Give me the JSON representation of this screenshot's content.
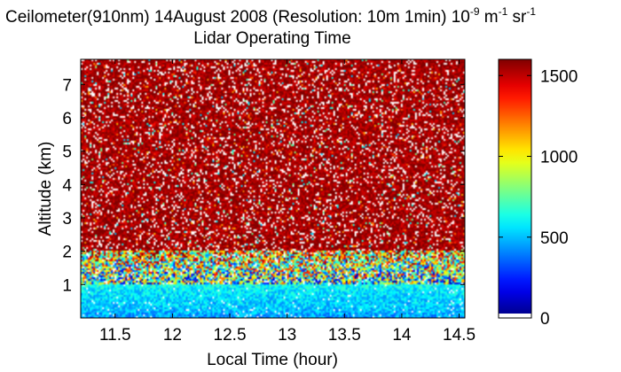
{
  "chart_data": {
    "type": "heatmap",
    "title": "Ceilometer(910nm) 14August 2008 (Resolution: 10m 1min) 10",
    "title_units": {
      "exp1": "-9",
      "unit1": " m",
      "exp2": "-1",
      "unit2": " sr",
      "exp3": "-1"
    },
    "subtitle": "Lidar Operating Time",
    "xlabel": "Local Time (hour)",
    "ylabel": "Altitude (km)",
    "xlim": [
      11.2,
      14.55
    ],
    "ylim": [
      0,
      7.75
    ],
    "x_ticks": [
      11.5,
      12,
      12.5,
      13,
      13.5,
      14,
      14.5
    ],
    "x_tick_labels": [
      "11.5",
      "12",
      "12.5",
      "13",
      "13.5",
      "14",
      "14.5"
    ],
    "y_ticks": [
      1,
      2,
      3,
      4,
      5,
      6,
      7
    ],
    "y_tick_labels": [
      "1",
      "2",
      "3",
      "4",
      "5",
      "6",
      "7"
    ],
    "colorbar": {
      "colormap": "jet",
      "range": [
        0,
        1600
      ],
      "ticks": [
        0,
        500,
        1000,
        1500
      ],
      "tick_labels": [
        "0",
        "500",
        "1000",
        "1500"
      ]
    },
    "altitude_profile": [
      {
        "altitude_km": 0.05,
        "typical_value": 450
      },
      {
        "altitude_km": 0.3,
        "typical_value": 520
      },
      {
        "altitude_km": 0.8,
        "typical_value": 560
      },
      {
        "altitude_km": 1.2,
        "typical_value": 700
      },
      {
        "altitude_km": 1.8,
        "typical_value": 1000
      },
      {
        "altitude_km": 2.5,
        "typical_value": 1400
      },
      {
        "altitude_km": 7.7,
        "typical_value": 1600
      }
    ],
    "grid": false
  }
}
